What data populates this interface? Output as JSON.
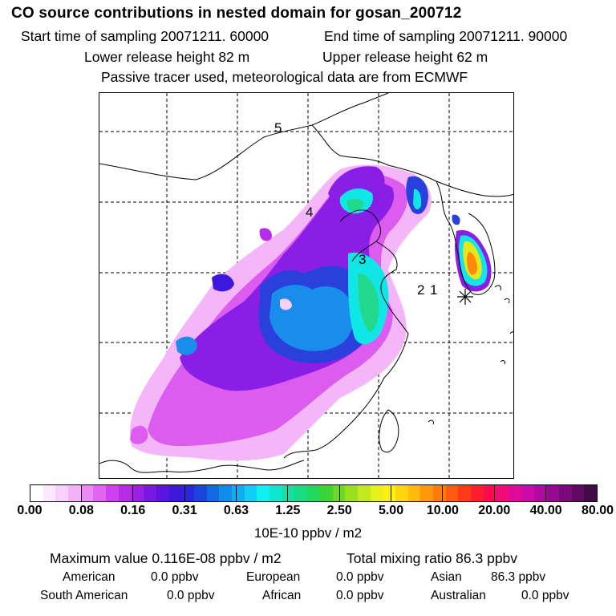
{
  "header": {
    "title": "CO  source contributions in nested domain for gosan_200712",
    "start_time": "Start time of sampling 20071211. 60000",
    "end_time": "End time of sampling 20071211. 90000",
    "lower_height": "Lower release height   82 m",
    "upper_height": "Upper release height   62 m",
    "tracer_note": "Passive tracer used, meteorological data are from ECMWF"
  },
  "map": {
    "trajectory_labels": [
      "5",
      "4",
      "3",
      "2",
      "1"
    ],
    "receptor_marker": "asterisk"
  },
  "colorbar": {
    "tick_labels": [
      "0.00",
      "0.08",
      "0.16",
      "0.31",
      "0.63",
      "1.25",
      "2.50",
      "5.00",
      "10.00",
      "20.00",
      "40.00",
      "80.00"
    ],
    "unit": "10E-10 ppbv / m2",
    "colors": [
      "#ffffff",
      "#fde8fd",
      "#f9d0fb",
      "#f3b2f7",
      "#ec8af5",
      "#e066f2",
      "#d040ee",
      "#b82ce9",
      "#9b1fe6",
      "#7a18e3",
      "#5a16e0",
      "#3d18dc",
      "#2a26da",
      "#1a44dc",
      "#1468e3",
      "#128cea",
      "#10aef0",
      "#0fd0f4",
      "#10f0f2",
      "#0fe6d0",
      "#12e0a8",
      "#18dc84",
      "#22d85c",
      "#3ad434",
      "#6cd822",
      "#98e01e",
      "#c4e81c",
      "#e6f01a",
      "#fff012",
      "#ffd60e",
      "#ffb80c",
      "#ff980a",
      "#ff7a0a",
      "#ff5a10",
      "#ff3a1a",
      "#ff1c2c",
      "#ff0a50",
      "#f20a78",
      "#e00a98",
      "#cc0aa8",
      "#b20aa0",
      "#960a90",
      "#7a0a7c",
      "#5e0a62",
      "#440a48"
    ]
  },
  "summary": {
    "max_value": "Maximum value  0.116E-08 ppbv / m2",
    "total_mixing": "Total mixing ratio       86.3 ppbv"
  },
  "sources": {
    "american": {
      "label": "American",
      "value": "0.0 ppbv"
    },
    "european": {
      "label": "European",
      "value": "0.0 ppbv"
    },
    "asian": {
      "label": "Asian",
      "value": "86.3 ppbv"
    },
    "south_american": {
      "label": "South American",
      "value": "0.0 ppbv"
    },
    "african": {
      "label": "African",
      "value": "0.0 ppbv"
    },
    "australian": {
      "label": "Australian",
      "value": "0.0 ppbv"
    }
  }
}
